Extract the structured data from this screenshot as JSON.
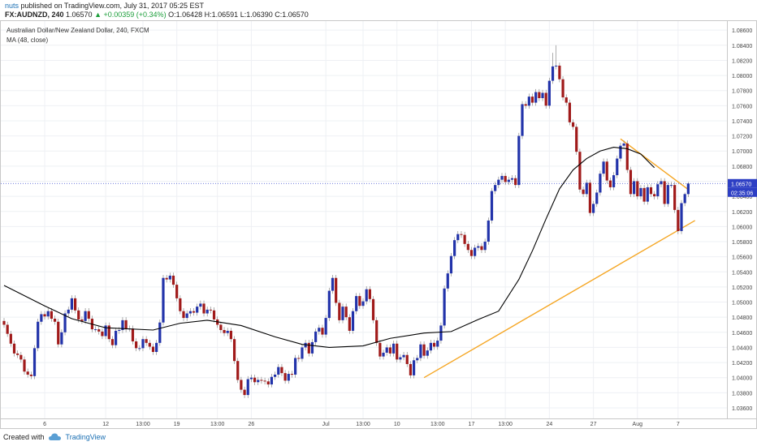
{
  "header": {
    "line1": "nuts published on TradingView.com, July 31, 2017 05:25 EST",
    "author": "nuts",
    "symbol": "FX:AUDNZD, 240",
    "last": "1.06570",
    "change": "▲ +0.00359 (+0.34%)",
    "open": "O:1.06428",
    "high": "H:1.06591",
    "low": "L:1.06390",
    "close": "C:1.06570"
  },
  "footer": {
    "created_with": "Created with",
    "brand": "TradingView"
  },
  "colors": {
    "up_candle": "#2233aa",
    "down_candle": "#a01a1a",
    "ma_line": "#000000",
    "trendline": "#f5a623",
    "price_line": "#3a4bd0"
  },
  "chart_data": {
    "type": "candlestick",
    "title": "Australian Dollar/New Zealand Dollar, 240, FXCM",
    "indicator_label": "MA (48, close)",
    "y_ticks": [
      "1.08600",
      "1.08400",
      "1.08200",
      "1.08000",
      "1.07800",
      "1.07600",
      "1.07400",
      "1.07200",
      "1.07000",
      "1.06800",
      "1.06600",
      "1.06400",
      "1.06200",
      "1.06000",
      "1.05800",
      "1.05600",
      "1.05400",
      "1.05200",
      "1.05000",
      "1.04800",
      "1.04600",
      "1.04400",
      "1.04200",
      "1.04000",
      "1.03800",
      "1.03600"
    ],
    "ylim": [
      1.0346,
      1.0872
    ],
    "x_ticks": [
      "6",
      "12",
      "13:00",
      "19",
      "13:00",
      "26",
      "Jul",
      "13:00",
      "10",
      "13:00",
      "17",
      "13:00",
      "24",
      "27",
      "Aug",
      "7"
    ],
    "last_price_label": "1.06570",
    "countdown_label": "02:35:06",
    "grid": true,
    "ma": [
      {
        "i": 0,
        "v": 1.0522
      },
      {
        "i": 12,
        "v": 1.0495
      },
      {
        "i": 20,
        "v": 1.0478
      },
      {
        "i": 30,
        "v": 1.0466
      },
      {
        "i": 44,
        "v": 1.0463
      },
      {
        "i": 52,
        "v": 1.0472
      },
      {
        "i": 60,
        "v": 1.0476
      },
      {
        "i": 70,
        "v": 1.0469
      },
      {
        "i": 80,
        "v": 1.0454
      },
      {
        "i": 88,
        "v": 1.0444
      },
      {
        "i": 96,
        "v": 1.044
      },
      {
        "i": 106,
        "v": 1.0442
      },
      {
        "i": 114,
        "v": 1.0452
      },
      {
        "i": 124,
        "v": 1.0459
      },
      {
        "i": 132,
        "v": 1.0461
      },
      {
        "i": 140,
        "v": 1.0477
      },
      {
        "i": 146,
        "v": 1.0488
      },
      {
        "i": 152,
        "v": 1.053
      },
      {
        "i": 156,
        "v": 1.0568
      },
      {
        "i": 160,
        "v": 1.061
      },
      {
        "i": 164,
        "v": 1.065
      },
      {
        "i": 168,
        "v": 1.0675
      },
      {
        "i": 172,
        "v": 1.069
      },
      {
        "i": 176,
        "v": 1.07
      },
      {
        "i": 180,
        "v": 1.0705
      },
      {
        "i": 184,
        "v": 1.0703
      },
      {
        "i": 188,
        "v": 1.0696
      },
      {
        "i": 192,
        "v": 1.0678
      }
    ],
    "trendlines": [
      {
        "name": "support",
        "points": [
          [
            124,
            1.04
          ],
          [
            204,
            1.0608
          ]
        ]
      },
      {
        "name": "resistance",
        "points": [
          [
            182,
            1.0716
          ],
          [
            202,
            1.0649
          ]
        ]
      }
    ],
    "candles": [
      [
        1.0475,
        1.047,
        1.0479,
        1.0466
      ],
      [
        1.047,
        1.0458,
        1.0474,
        1.0454
      ],
      [
        1.0458,
        1.0445,
        1.0462,
        1.0441
      ],
      [
        1.0445,
        1.0432,
        1.0449,
        1.0428
      ],
      [
        1.0432,
        1.043,
        1.0436,
        1.0426
      ],
      [
        1.043,
        1.0424,
        1.0434,
        1.042
      ],
      [
        1.0424,
        1.0408,
        1.0428,
        1.0404
      ],
      [
        1.0408,
        1.0404,
        1.0412,
        1.04
      ],
      [
        1.0404,
        1.0402,
        1.0408,
        1.0398
      ],
      [
        1.0402,
        1.0439,
        1.0443,
        1.0398
      ],
      [
        1.0439,
        1.0474,
        1.0478,
        1.0435
      ],
      [
        1.0474,
        1.0484,
        1.0488,
        1.047
      ],
      [
        1.0484,
        1.0481,
        1.0488,
        1.0477
      ],
      [
        1.0481,
        1.0488,
        1.0492,
        1.0477
      ],
      [
        1.0488,
        1.0478,
        1.0492,
        1.0474
      ],
      [
        1.0478,
        1.0474,
        1.0482,
        1.047
      ],
      [
        1.0474,
        1.0444,
        1.0478,
        1.044
      ],
      [
        1.0444,
        1.046,
        1.0464,
        1.044
      ],
      [
        1.046,
        1.0485,
        1.0489,
        1.0456
      ],
      [
        1.0485,
        1.049,
        1.0494,
        1.0481
      ],
      [
        1.049,
        1.0505,
        1.0509,
        1.0486
      ],
      [
        1.0505,
        1.0489,
        1.0509,
        1.0485
      ],
      [
        1.0489,
        1.0477,
        1.0493,
        1.0473
      ],
      [
        1.0477,
        1.0475,
        1.0481,
        1.0471
      ],
      [
        1.0475,
        1.0488,
        1.0492,
        1.0471
      ],
      [
        1.0488,
        1.0478,
        1.0492,
        1.0474
      ],
      [
        1.0478,
        1.0464,
        1.0482,
        1.046
      ],
      [
        1.0464,
        1.0464,
        1.0468,
        1.046
      ],
      [
        1.0464,
        1.0461,
        1.0468,
        1.0457
      ],
      [
        1.0461,
        1.0455,
        1.0465,
        1.0451
      ],
      [
        1.0455,
        1.0469,
        1.0473,
        1.0451
      ],
      [
        1.0469,
        1.0451,
        1.0473,
        1.0447
      ],
      [
        1.0451,
        1.0443,
        1.0455,
        1.0439
      ],
      [
        1.0443,
        1.0462,
        1.0466,
        1.0439
      ],
      [
        1.0462,
        1.0463,
        1.0467,
        1.0458
      ],
      [
        1.0463,
        1.0476,
        1.048,
        1.0459
      ],
      [
        1.0476,
        1.0464,
        1.048,
        1.046
      ],
      [
        1.0464,
        1.0465,
        1.0469,
        1.0461
      ],
      [
        1.0465,
        1.0448,
        1.0469,
        1.0444
      ],
      [
        1.0448,
        1.0439,
        1.0452,
        1.0435
      ],
      [
        1.0439,
        1.0439,
        1.0443,
        1.0435
      ],
      [
        1.0439,
        1.0451,
        1.0455,
        1.0435
      ],
      [
        1.0451,
        1.0446,
        1.0455,
        1.0442
      ],
      [
        1.0446,
        1.0441,
        1.045,
        1.0437
      ],
      [
        1.0441,
        1.0434,
        1.0445,
        1.043
      ],
      [
        1.0434,
        1.0446,
        1.045,
        1.043
      ],
      [
        1.0446,
        1.0473,
        1.0477,
        1.0442
      ],
      [
        1.0473,
        1.0532,
        1.0536,
        1.0469
      ],
      [
        1.0532,
        1.053,
        1.0536,
        1.0526
      ],
      [
        1.053,
        1.0535,
        1.0539,
        1.0526
      ],
      [
        1.0535,
        1.0523,
        1.0539,
        1.0519
      ],
      [
        1.0523,
        1.0505,
        1.0527,
        1.0501
      ],
      [
        1.0505,
        1.0488,
        1.0509,
        1.0484
      ],
      [
        1.0488,
        1.0479,
        1.0492,
        1.0475
      ],
      [
        1.0479,
        1.0485,
        1.0489,
        1.0475
      ],
      [
        1.0485,
        1.0488,
        1.0492,
        1.0481
      ],
      [
        1.0488,
        1.0486,
        1.0492,
        1.0482
      ],
      [
        1.0486,
        1.0494,
        1.0498,
        1.0482
      ],
      [
        1.0494,
        1.0498,
        1.0502,
        1.049
      ],
      [
        1.0498,
        1.0485,
        1.0502,
        1.0481
      ],
      [
        1.0485,
        1.049,
        1.0494,
        1.0481
      ],
      [
        1.049,
        1.0489,
        1.0494,
        1.0485
      ],
      [
        1.0489,
        1.0477,
        1.0493,
        1.0473
      ],
      [
        1.0477,
        1.047,
        1.0481,
        1.0466
      ],
      [
        1.047,
        1.0463,
        1.0474,
        1.0459
      ],
      [
        1.0463,
        1.0459,
        1.0467,
        1.0455
      ],
      [
        1.0459,
        1.0462,
        1.0466,
        1.0455
      ],
      [
        1.0462,
        1.0451,
        1.0466,
        1.0447
      ],
      [
        1.0451,
        1.0422,
        1.0455,
        1.0418
      ],
      [
        1.0422,
        1.0397,
        1.0426,
        1.0393
      ],
      [
        1.0397,
        1.0384,
        1.0401,
        1.038
      ],
      [
        1.0384,
        1.0377,
        1.0388,
        1.0373
      ],
      [
        1.0377,
        1.0398,
        1.0402,
        1.0373
      ],
      [
        1.0398,
        1.04,
        1.0404,
        1.0394
      ],
      [
        1.04,
        1.0394,
        1.0404,
        1.039
      ],
      [
        1.0394,
        1.0397,
        1.0401,
        1.039
      ],
      [
        1.0397,
        1.0396,
        1.0401,
        1.0392
      ],
      [
        1.0396,
        1.0395,
        1.04,
        1.0391
      ],
      [
        1.0395,
        1.0391,
        1.0399,
        1.0387
      ],
      [
        1.0391,
        1.0401,
        1.0405,
        1.0387
      ],
      [
        1.0401,
        1.0404,
        1.0408,
        1.0397
      ],
      [
        1.0404,
        1.0414,
        1.0418,
        1.04
      ],
      [
        1.0414,
        1.0406,
        1.0418,
        1.0402
      ],
      [
        1.0406,
        1.0396,
        1.041,
        1.0392
      ],
      [
        1.0396,
        1.0405,
        1.0409,
        1.0392
      ],
      [
        1.0405,
        1.0404,
        1.0409,
        1.04
      ],
      [
        1.0404,
        1.0426,
        1.043,
        1.04
      ],
      [
        1.0426,
        1.0425,
        1.043,
        1.0421
      ],
      [
        1.0425,
        1.044,
        1.0444,
        1.0421
      ],
      [
        1.044,
        1.0446,
        1.045,
        1.0436
      ],
      [
        1.0446,
        1.0432,
        1.045,
        1.0428
      ],
      [
        1.0432,
        1.0447,
        1.0451,
        1.0428
      ],
      [
        1.0447,
        1.0461,
        1.0465,
        1.0443
      ],
      [
        1.0461,
        1.0466,
        1.047,
        1.0457
      ],
      [
        1.0466,
        1.0457,
        1.047,
        1.0453
      ],
      [
        1.0457,
        1.0479,
        1.0483,
        1.0453
      ],
      [
        1.0479,
        1.0515,
        1.0519,
        1.0475
      ],
      [
        1.0515,
        1.0532,
        1.0536,
        1.0511
      ],
      [
        1.0532,
        1.0499,
        1.0536,
        1.0495
      ],
      [
        1.0499,
        1.0476,
        1.0503,
        1.0472
      ],
      [
        1.0476,
        1.0494,
        1.0498,
        1.0472
      ],
      [
        1.0494,
        1.048,
        1.0498,
        1.0476
      ],
      [
        1.048,
        1.0462,
        1.0484,
        1.0458
      ],
      [
        1.0462,
        1.0488,
        1.0492,
        1.0458
      ],
      [
        1.0488,
        1.0508,
        1.0512,
        1.0484
      ],
      [
        1.0508,
        1.0495,
        1.0512,
        1.0491
      ],
      [
        1.0495,
        1.0501,
        1.0505,
        1.0491
      ],
      [
        1.0501,
        1.0517,
        1.0521,
        1.0497
      ],
      [
        1.0517,
        1.0504,
        1.0521,
        1.05
      ],
      [
        1.0504,
        1.0476,
        1.0508,
        1.0472
      ],
      [
        1.0476,
        1.0446,
        1.048,
        1.0442
      ],
      [
        1.0446,
        1.0428,
        1.045,
        1.0424
      ],
      [
        1.0428,
        1.0433,
        1.0437,
        1.0424
      ],
      [
        1.0433,
        1.044,
        1.0444,
        1.0429
      ],
      [
        1.044,
        1.0432,
        1.0444,
        1.0428
      ],
      [
        1.0432,
        1.0445,
        1.0449,
        1.0428
      ],
      [
        1.0445,
        1.0424,
        1.0449,
        1.042
      ],
      [
        1.0424,
        1.0427,
        1.0431,
        1.042
      ],
      [
        1.0427,
        1.043,
        1.0434,
        1.0423
      ],
      [
        1.043,
        1.0418,
        1.0434,
        1.0414
      ],
      [
        1.0418,
        1.0403,
        1.0422,
        1.0399
      ],
      [
        1.0403,
        1.0423,
        1.0427,
        1.0399
      ],
      [
        1.0423,
        1.0426,
        1.043,
        1.0419
      ],
      [
        1.0426,
        1.0444,
        1.0448,
        1.0422
      ],
      [
        1.0444,
        1.0429,
        1.0448,
        1.0425
      ],
      [
        1.0429,
        1.0436,
        1.044,
        1.0425
      ],
      [
        1.0436,
        1.0446,
        1.045,
        1.0432
      ],
      [
        1.0446,
        1.0441,
        1.045,
        1.0437
      ],
      [
        1.0441,
        1.0449,
        1.0453,
        1.0437
      ],
      [
        1.0449,
        1.0469,
        1.0473,
        1.0445
      ],
      [
        1.0469,
        1.0518,
        1.0522,
        1.0465
      ],
      [
        1.0518,
        1.0538,
        1.0542,
        1.0514
      ],
      [
        1.0538,
        1.0561,
        1.0565,
        1.0534
      ],
      [
        1.0561,
        1.0582,
        1.0586,
        1.0557
      ],
      [
        1.0582,
        1.059,
        1.0594,
        1.0578
      ],
      [
        1.059,
        1.0589,
        1.0594,
        1.0585
      ],
      [
        1.0589,
        1.0577,
        1.0593,
        1.0573
      ],
      [
        1.0577,
        1.0569,
        1.0581,
        1.0565
      ],
      [
        1.0569,
        1.0561,
        1.0573,
        1.0557
      ],
      [
        1.0561,
        1.0572,
        1.0576,
        1.0557
      ],
      [
        1.0572,
        1.0574,
        1.0578,
        1.0568
      ],
      [
        1.0574,
        1.0569,
        1.0578,
        1.0565
      ],
      [
        1.0569,
        1.058,
        1.0584,
        1.0565
      ],
      [
        1.058,
        1.0608,
        1.0612,
        1.0576
      ],
      [
        1.0608,
        1.0647,
        1.0651,
        1.0604
      ],
      [
        1.0647,
        1.0655,
        1.0659,
        1.0643
      ],
      [
        1.0655,
        1.0662,
        1.0666,
        1.0651
      ],
      [
        1.0662,
        1.0667,
        1.0671,
        1.0658
      ],
      [
        1.0667,
        1.0659,
        1.0671,
        1.0655
      ],
      [
        1.0659,
        1.0662,
        1.0666,
        1.0655
      ],
      [
        1.0662,
        1.0664,
        1.0668,
        1.0658
      ],
      [
        1.0664,
        1.0655,
        1.0668,
        1.0651
      ],
      [
        1.0655,
        1.072,
        1.0724,
        1.0651
      ],
      [
        1.072,
        1.0762,
        1.0766,
        1.0716
      ],
      [
        1.0762,
        1.076,
        1.0766,
        1.0756
      ],
      [
        1.076,
        1.0772,
        1.0776,
        1.0756
      ],
      [
        1.0772,
        1.0764,
        1.0776,
        1.076
      ],
      [
        1.0764,
        1.0778,
        1.0782,
        1.076
      ],
      [
        1.0778,
        1.077,
        1.0782,
        1.0766
      ],
      [
        1.077,
        1.0777,
        1.0781,
        1.0766
      ],
      [
        1.0777,
        1.076,
        1.0781,
        1.0756
      ],
      [
        1.076,
        1.0793,
        1.0797,
        1.0756
      ],
      [
        1.0793,
        1.0812,
        1.083,
        1.0789
      ],
      [
        1.0812,
        1.0813,
        1.084,
        1.0808
      ],
      [
        1.0813,
        1.0795,
        1.0817,
        1.0791
      ],
      [
        1.0795,
        1.0771,
        1.0799,
        1.0767
      ],
      [
        1.0771,
        1.0764,
        1.0775,
        1.076
      ],
      [
        1.0764,
        1.0738,
        1.0768,
        1.0734
      ],
      [
        1.0738,
        1.0732,
        1.0742,
        1.0728
      ],
      [
        1.0732,
        1.0699,
        1.0736,
        1.0695
      ],
      [
        1.0699,
        1.0649,
        1.0703,
        1.0645
      ],
      [
        1.0649,
        1.0643,
        1.0653,
        1.0639
      ],
      [
        1.0643,
        1.0658,
        1.0662,
        1.0639
      ],
      [
        1.0658,
        1.0618,
        1.0662,
        1.0614
      ],
      [
        1.0618,
        1.063,
        1.0634,
        1.0614
      ],
      [
        1.063,
        1.0645,
        1.0649,
        1.0626
      ],
      [
        1.0645,
        1.067,
        1.0674,
        1.0641
      ],
      [
        1.067,
        1.0686,
        1.069,
        1.0666
      ],
      [
        1.0686,
        1.0661,
        1.069,
        1.0657
      ],
      [
        1.0661,
        1.0652,
        1.0665,
        1.0648
      ],
      [
        1.0652,
        1.0668,
        1.0672,
        1.0648
      ],
      [
        1.0668,
        1.069,
        1.0694,
        1.0664
      ],
      [
        1.069,
        1.0707,
        1.0711,
        1.0686
      ],
      [
        1.0707,
        1.071,
        1.0714,
        1.0703
      ],
      [
        1.071,
        1.0675,
        1.0714,
        1.0671
      ],
      [
        1.0675,
        1.0643,
        1.0679,
        1.0639
      ],
      [
        1.0643,
        1.066,
        1.0664,
        1.0639
      ],
      [
        1.066,
        1.064,
        1.0664,
        1.0636
      ],
      [
        1.064,
        1.0651,
        1.0655,
        1.0636
      ],
      [
        1.0651,
        1.0633,
        1.0655,
        1.0629
      ],
      [
        1.0633,
        1.0652,
        1.0656,
        1.0629
      ],
      [
        1.0652,
        1.0643,
        1.0656,
        1.0639
      ],
      [
        1.0643,
        1.064,
        1.0647,
        1.0636
      ],
      [
        1.064,
        1.0656,
        1.066,
        1.0636
      ],
      [
        1.0656,
        1.066,
        1.0664,
        1.0652
      ],
      [
        1.066,
        1.063,
        1.0664,
        1.0626
      ],
      [
        1.063,
        1.0655,
        1.0659,
        1.0626
      ],
      [
        1.0655,
        1.0655,
        1.0659,
        1.0651
      ],
      [
        1.0655,
        1.0622,
        1.0659,
        1.0618
      ],
      [
        1.0622,
        1.0594,
        1.0626,
        1.059
      ],
      [
        1.0594,
        1.0631,
        1.0635,
        1.059
      ],
      [
        1.0631,
        1.0643,
        1.0645,
        1.0627
      ],
      [
        1.0643,
        1.0657,
        1.0659,
        1.0639
      ]
    ]
  }
}
